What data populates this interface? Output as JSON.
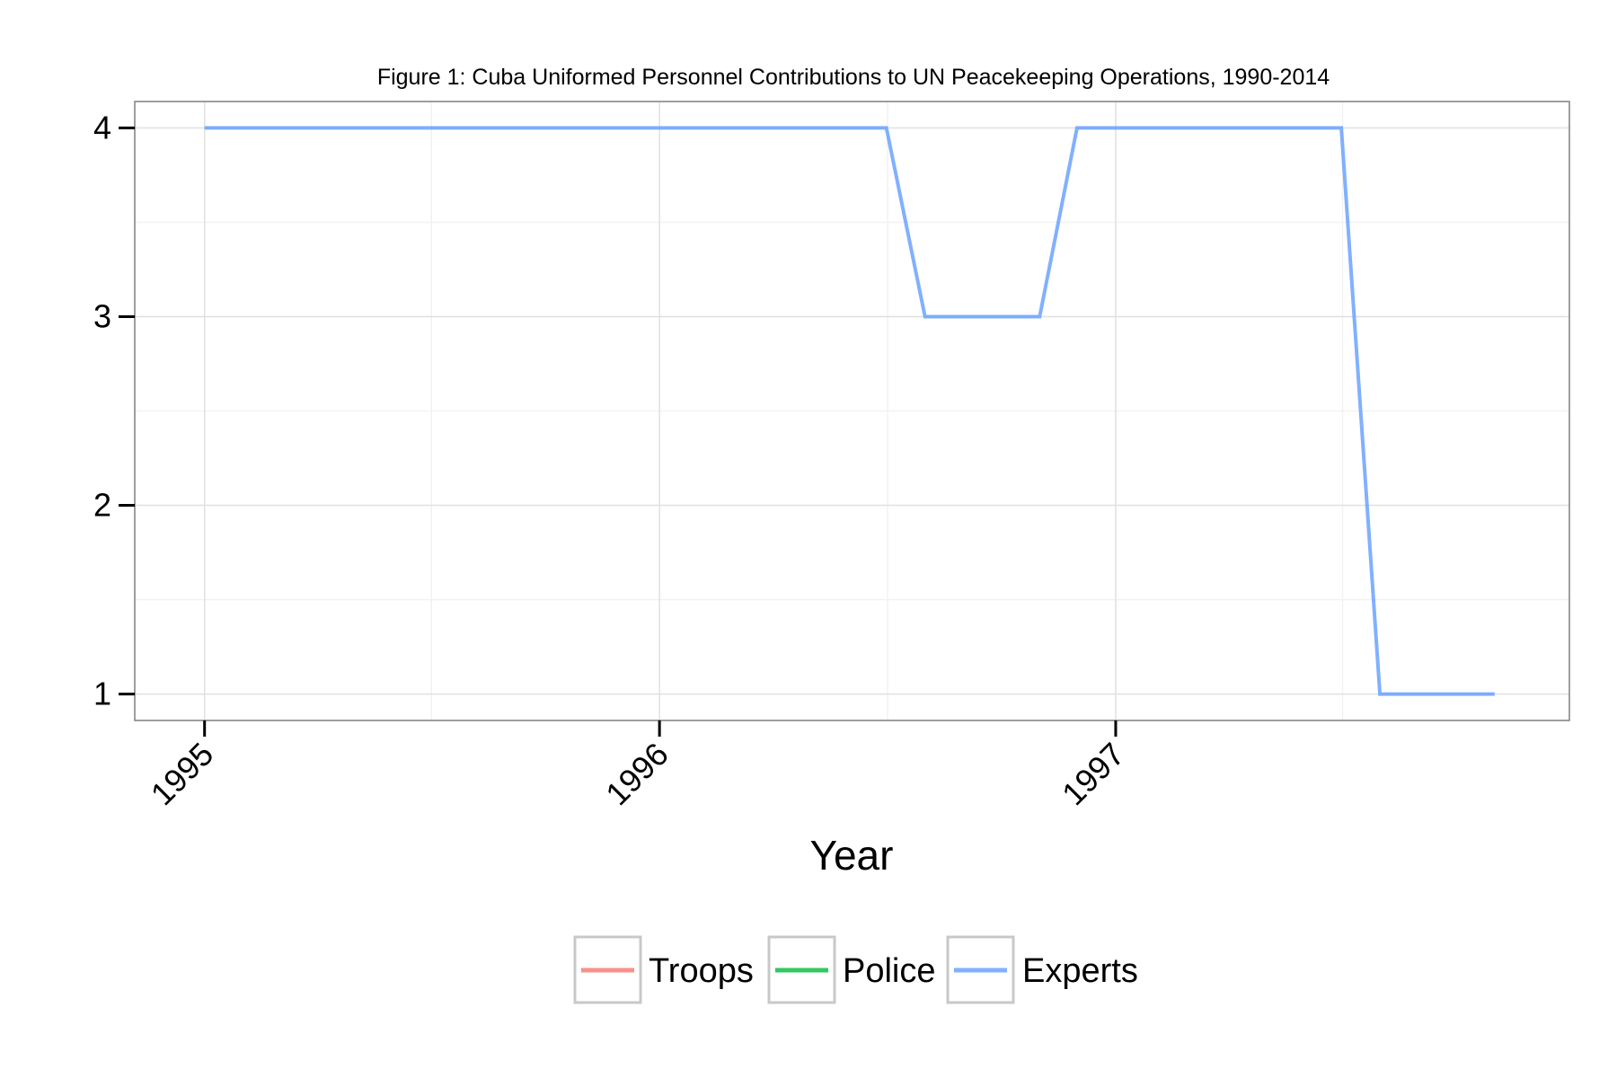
{
  "chart_data": {
    "type": "line",
    "title": "Figure 1: Cuba Uniformed Personnel Contributions to UN Peacekeeping Operations, 1990-2014",
    "xlabel": "Year",
    "ylabel": "",
    "x_ticks": [
      "1995",
      "1996",
      "1997"
    ],
    "y_ticks": [
      1,
      2,
      3,
      4
    ],
    "ylim": [
      0.86,
      4.14
    ],
    "xlim": [
      "1994-11-06",
      "1997-12-31"
    ],
    "grid": true,
    "legend": "bottom",
    "series": [
      {
        "name": "Troops",
        "color": "#F8766D",
        "points": []
      },
      {
        "name": "Police",
        "color": "#00BA38",
        "points": []
      },
      {
        "name": "Experts",
        "color": "#619CFF",
        "points": [
          {
            "x": "1995-01-01",
            "y": 4
          },
          {
            "x": "1996-07-01",
            "y": 4
          },
          {
            "x": "1996-08-01",
            "y": 3
          },
          {
            "x": "1996-11-01",
            "y": 3
          },
          {
            "x": "1996-12-01",
            "y": 4
          },
          {
            "x": "1997-07-01",
            "y": 4
          },
          {
            "x": "1997-08-01",
            "y": 1
          },
          {
            "x": "1997-11-01",
            "y": 1
          }
        ]
      }
    ]
  }
}
